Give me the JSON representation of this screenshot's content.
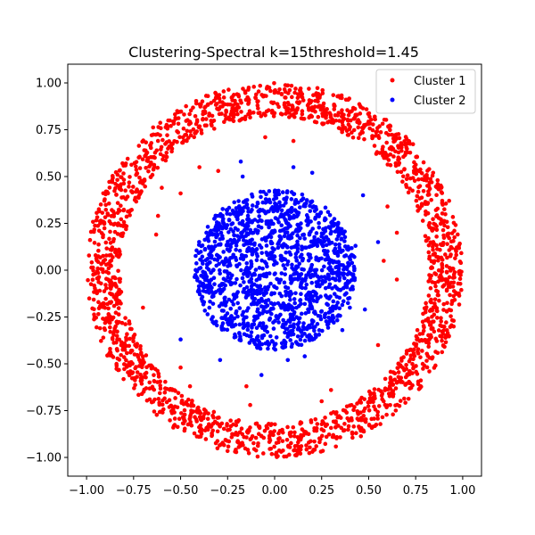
{
  "chart_data": {
    "type": "scatter",
    "title": "Clustering-Spectral k=15threshold=1.45",
    "xlabel": "",
    "ylabel": "",
    "xlim": [
      -1.1,
      1.1
    ],
    "ylim": [
      -1.1,
      1.1
    ],
    "xticks": [
      -1.0,
      -0.75,
      -0.5,
      -0.25,
      0.0,
      0.25,
      0.5,
      0.75,
      1.0
    ],
    "yticks": [
      -1.0,
      -0.75,
      -0.5,
      -0.25,
      0.0,
      0.25,
      0.5,
      0.75,
      1.0
    ],
    "xtick_labels": [
      "−1.00",
      "−0.75",
      "−0.50",
      "−0.25",
      "0.00",
      "0.25",
      "0.50",
      "0.75",
      "1.00"
    ],
    "ytick_labels": [
      "−1.00",
      "−0.75",
      "−0.50",
      "−0.25",
      "0.00",
      "0.25",
      "0.50",
      "0.75",
      "1.00"
    ],
    "grid": false,
    "legend_position": "top-right",
    "series": [
      {
        "name": "Cluster 1",
        "color": "#ff0000",
        "description_points": [
          {
            "x": 0.0,
            "y": 0.97
          },
          {
            "x": 0.35,
            "y": 0.91
          },
          {
            "x": 0.66,
            "y": 0.72
          },
          {
            "x": 0.88,
            "y": 0.4
          },
          {
            "x": 0.97,
            "y": 0.0
          },
          {
            "x": 0.9,
            "y": -0.38
          },
          {
            "x": 0.68,
            "y": -0.7
          },
          {
            "x": 0.35,
            "y": -0.9
          },
          {
            "x": 0.0,
            "y": -0.97
          },
          {
            "x": -0.35,
            "y": -0.9
          },
          {
            "x": -0.68,
            "y": -0.7
          },
          {
            "x": -0.9,
            "y": -0.38
          },
          {
            "x": -0.97,
            "y": 0.0
          },
          {
            "x": -0.9,
            "y": 0.38
          },
          {
            "x": -0.68,
            "y": 0.7
          },
          {
            "x": -0.35,
            "y": 0.9
          }
        ],
        "shape": "ring",
        "ring_radius_range": [
          0.82,
          1.0
        ],
        "stray_points": [
          {
            "x": -0.05,
            "y": 0.71
          },
          {
            "x": 0.1,
            "y": 0.69
          },
          {
            "x": -0.4,
            "y": 0.55
          },
          {
            "x": -0.6,
            "y": 0.44
          },
          {
            "x": -0.5,
            "y": 0.41
          },
          {
            "x": -0.62,
            "y": 0.29
          },
          {
            "x": -0.63,
            "y": 0.19
          },
          {
            "x": 0.6,
            "y": 0.34
          },
          {
            "x": 0.65,
            "y": 0.2
          },
          {
            "x": 0.58,
            "y": 0.05
          },
          {
            "x": 0.65,
            "y": -0.05
          },
          {
            "x": -0.7,
            "y": -0.2
          },
          {
            "x": -0.5,
            "y": -0.52
          },
          {
            "x": -0.45,
            "y": -0.62
          },
          {
            "x": -0.15,
            "y": -0.62
          },
          {
            "x": -0.13,
            "y": -0.72
          },
          {
            "x": 0.3,
            "y": -0.64
          },
          {
            "x": 0.25,
            "y": -0.7
          },
          {
            "x": 0.55,
            "y": -0.4
          },
          {
            "x": -0.3,
            "y": 0.53
          }
        ]
      },
      {
        "name": "Cluster 2",
        "color": "#0000ff",
        "shape": "disk",
        "center": {
          "x": 0.0,
          "y": 0.0
        },
        "disk_radius": 0.43,
        "stray_points": [
          {
            "x": -0.18,
            "y": 0.58
          },
          {
            "x": -0.17,
            "y": 0.5
          },
          {
            "x": 0.1,
            "y": 0.55
          },
          {
            "x": 0.2,
            "y": 0.52
          },
          {
            "x": 0.47,
            "y": 0.4
          },
          {
            "x": 0.55,
            "y": 0.15
          },
          {
            "x": 0.43,
            "y": 0.13
          },
          {
            "x": 0.48,
            "y": -0.21
          },
          {
            "x": 0.4,
            "y": -0.2
          },
          {
            "x": -0.5,
            "y": -0.37
          },
          {
            "x": -0.29,
            "y": -0.48
          },
          {
            "x": -0.07,
            "y": -0.56
          },
          {
            "x": 0.16,
            "y": -0.46
          },
          {
            "x": 0.07,
            "y": -0.48
          },
          {
            "x": 0.36,
            "y": -0.32
          }
        ]
      }
    ]
  },
  "legend": {
    "items": [
      {
        "label": "Cluster 1",
        "color": "#ff0000"
      },
      {
        "label": "Cluster 2",
        "color": "#0000ff"
      }
    ]
  }
}
